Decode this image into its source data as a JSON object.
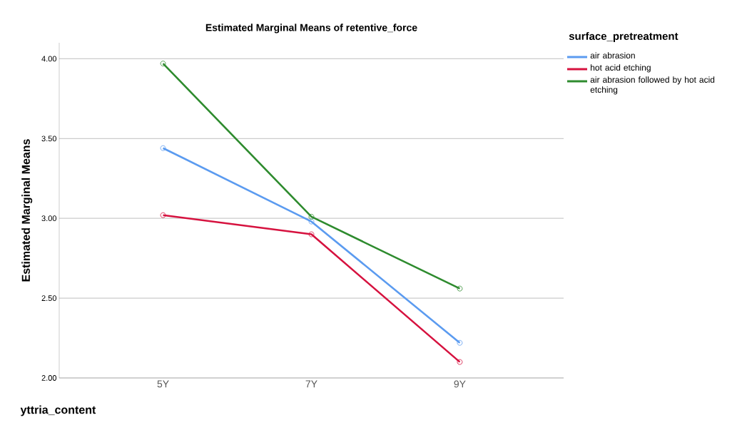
{
  "chart_data": {
    "type": "line",
    "title": "Estimated Marginal Means of retentive_force",
    "xlabel": "yttria_content",
    "ylabel": "Estimated Marginal Means",
    "legend_title": "surface_pretreatment",
    "categories": [
      "5Y",
      "7Y",
      "9Y"
    ],
    "series": [
      {
        "name": "air abrasion",
        "color": "#5b9bf0",
        "values": [
          3.44,
          2.98,
          2.22
        ]
      },
      {
        "name": "hot acid etching",
        "color": "#d6123f",
        "values": [
          3.02,
          2.9,
          2.1
        ]
      },
      {
        "name": "air abrasion followed by hot acid etching",
        "color": "#2e8b2e",
        "values": [
          3.97,
          3.01,
          2.56
        ]
      }
    ],
    "ylim": [
      2.0,
      4.1
    ],
    "yticks": [
      {
        "value": 2.0,
        "label": "2.00"
      },
      {
        "value": 2.5,
        "label": "2.50"
      },
      {
        "value": 3.0,
        "label": "3.00"
      },
      {
        "value": 3.5,
        "label": "3.50"
      },
      {
        "value": 4.0,
        "label": "4.00"
      }
    ],
    "grid": "y",
    "legend": "right",
    "marker": "circle",
    "line_style": "solid"
  }
}
